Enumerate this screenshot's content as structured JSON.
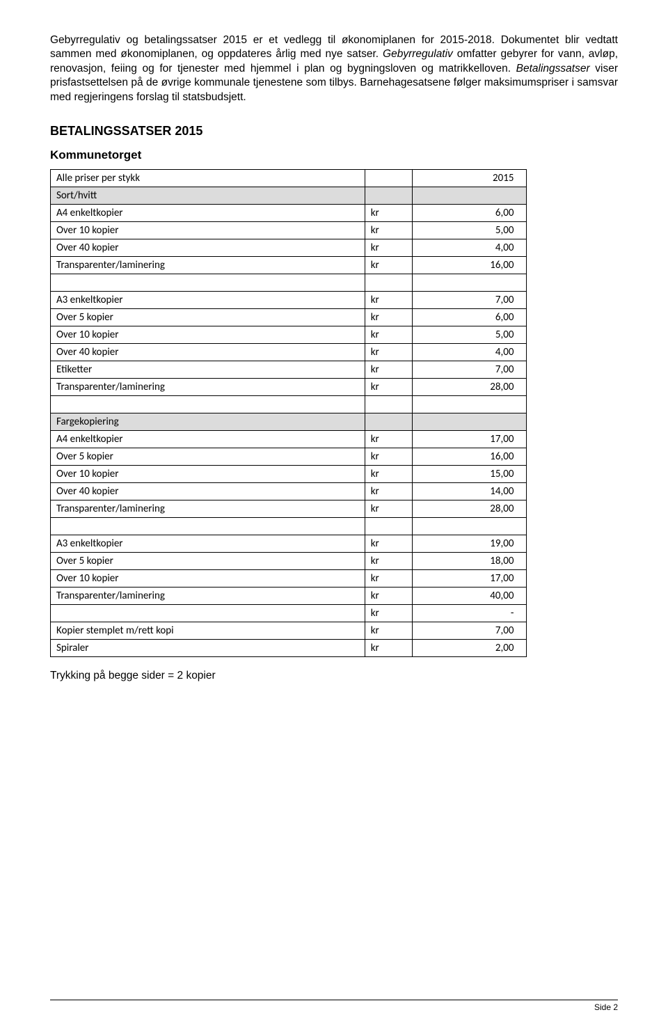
{
  "intro": {
    "sent1": "Gebyrregulativ og betalingssatser 2015 er et vedlegg til økonomiplanen for 2015-2018. Dokumentet blir vedtatt sammen med økonomiplanen, og oppdateres årlig med nye satser.",
    "sent2_italic_a": "Gebyrregulativ",
    "sent2_rest_a": " omfatter gebyrer for vann, avløp, renovasjon, feiing og for tjenester med hjemmel i plan og bygningsloven og matrikkelloven. ",
    "sent2_italic_b": "Betalingssatser",
    "sent2_rest_b": " viser prisfastsettelsen på de øvrige kommunale tjenestene som tilbys. Barnehagesatsene følger maksimumspriser i samsvar med regjeringens forslag til statsbudsjett."
  },
  "heading": "BETALINGSSATSER 2015",
  "subheading": "Kommunetorget",
  "table": {
    "columns": [
      "desc",
      "kr",
      "value"
    ],
    "rows": [
      {
        "desc": "Alle priser per stykk",
        "kr": "",
        "val": "2015",
        "shaded": false,
        "header": true
      },
      {
        "desc": "Sort/hvitt",
        "kr": "",
        "val": "",
        "shaded": true
      },
      {
        "desc": "A4 enkeltkopier",
        "kr": "kr",
        "val": "6,00"
      },
      {
        "desc": "Over 10 kopier",
        "kr": "kr",
        "val": "5,00"
      },
      {
        "desc": "Over 40 kopier",
        "kr": "kr",
        "val": "4,00"
      },
      {
        "desc": "Transparenter/laminering",
        "kr": "kr",
        "val": "16,00"
      },
      {
        "desc": "",
        "kr": "",
        "val": ""
      },
      {
        "desc": "A3 enkeltkopier",
        "kr": "kr",
        "val": "7,00"
      },
      {
        "desc": "Over 5 kopier",
        "kr": "kr",
        "val": "6,00"
      },
      {
        "desc": "Over 10 kopier",
        "kr": "kr",
        "val": "5,00"
      },
      {
        "desc": "Over 40 kopier",
        "kr": "kr",
        "val": "4,00"
      },
      {
        "desc": "Etiketter",
        "kr": "kr",
        "val": "7,00"
      },
      {
        "desc": "Transparenter/laminering",
        "kr": "kr",
        "val": "28,00"
      },
      {
        "desc": "",
        "kr": "",
        "val": ""
      },
      {
        "desc": "Fargekopiering",
        "kr": "",
        "val": "",
        "shaded": true
      },
      {
        "desc": "A4 enkeltkopier",
        "kr": "kr",
        "val": "17,00"
      },
      {
        "desc": "Over 5 kopier",
        "kr": "kr",
        "val": "16,00"
      },
      {
        "desc": "Over 10 kopier",
        "kr": "kr",
        "val": "15,00"
      },
      {
        "desc": "Over 40 kopier",
        "kr": "kr",
        "val": "14,00"
      },
      {
        "desc": "Transparenter/laminering",
        "kr": "kr",
        "val": "28,00"
      },
      {
        "desc": "",
        "kr": "",
        "val": ""
      },
      {
        "desc": "A3 enkeltkopier",
        "kr": "kr",
        "val": "19,00"
      },
      {
        "desc": "Over 5 kopier",
        "kr": "kr",
        "val": "18,00"
      },
      {
        "desc": "Over 10 kopier",
        "kr": "kr",
        "val": "17,00"
      },
      {
        "desc": "Transparenter/laminering",
        "kr": "kr",
        "val": "40,00"
      },
      {
        "desc": "",
        "kr": "kr",
        "val": "-"
      },
      {
        "desc": "Kopier stemplet m/rett kopi",
        "kr": "kr",
        "val": "7,00"
      },
      {
        "desc": "Spiraler",
        "kr": "kr",
        "val": "2,00"
      }
    ]
  },
  "footnote": "Trykking på begge sider = 2 kopier",
  "footer": "Side 2"
}
